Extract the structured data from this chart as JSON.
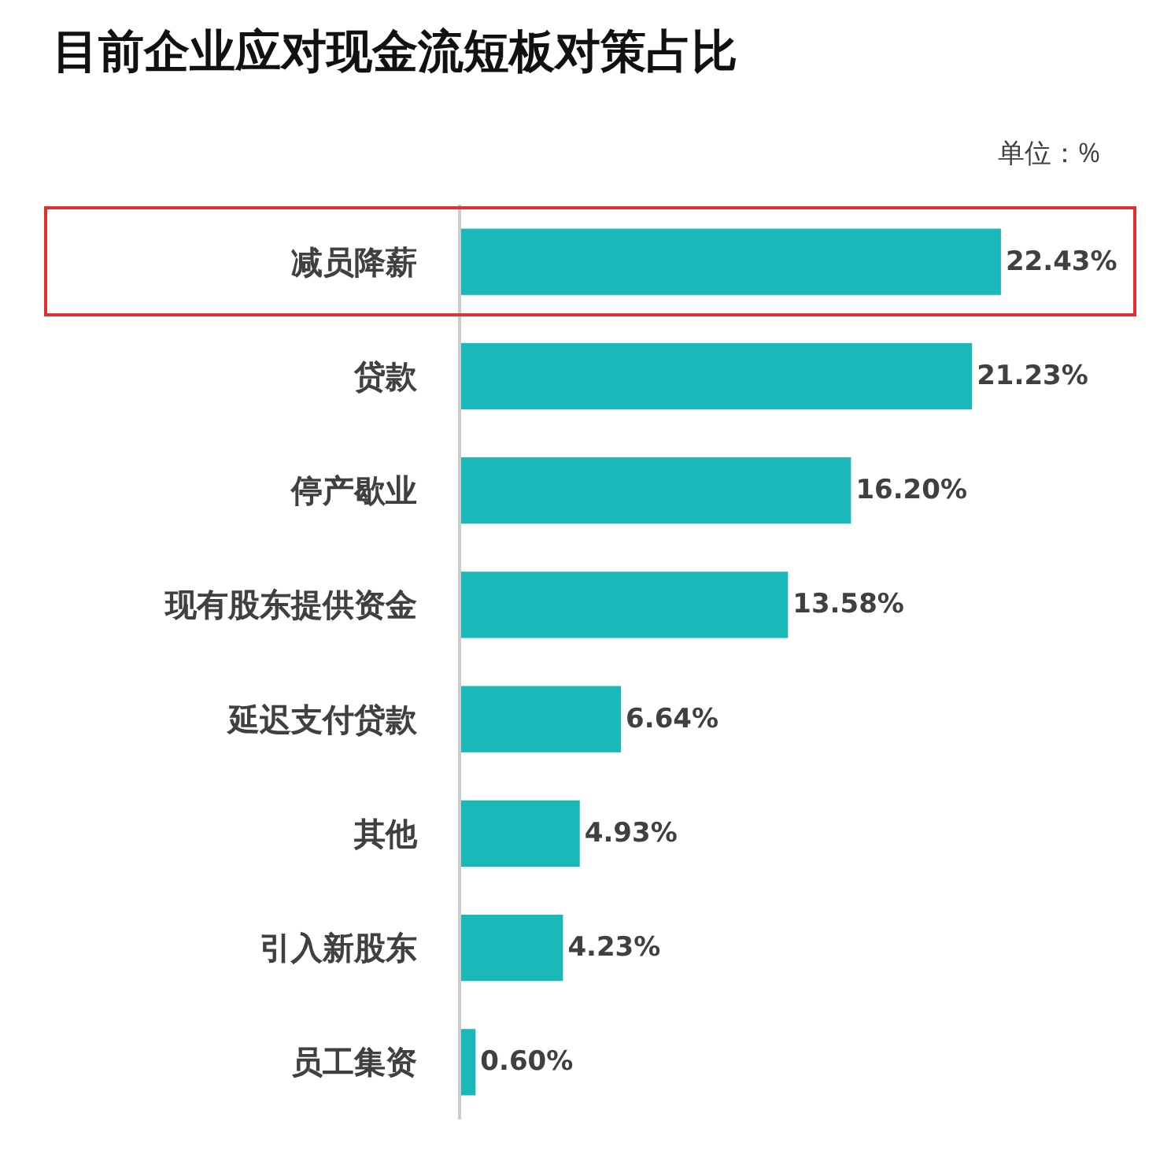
{
  "chart_data": {
    "type": "bar",
    "orientation": "horizontal",
    "title": "目前企业应对现金流短板对策占比",
    "annotations": [
      "单位：%"
    ],
    "categories": [
      "减员降薪",
      "贷款",
      "停产歇业",
      "现有股东提供资金",
      "延迟支付贷款",
      "其他",
      "引入新股东",
      "员工集资"
    ],
    "values": [
      22.43,
      21.23,
      16.2,
      13.58,
      6.64,
      4.93,
      4.23,
      0.6
    ],
    "value_labels": [
      "22.43%",
      "21.23%",
      "16.20%",
      "13.58%",
      "6.64%",
      "4.93%",
      "4.23%",
      "0.60%"
    ],
    "color": "#1ab8b8",
    "tick_labels": "y"
  }
}
